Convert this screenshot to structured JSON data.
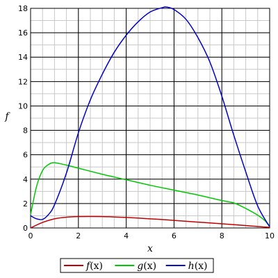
{
  "chart_data": {
    "type": "line",
    "title": "",
    "xlabel": "x",
    "ylabel": "f",
    "xlim": [
      0,
      10
    ],
    "ylim": [
      0,
      18
    ],
    "x_ticks": [
      0,
      2,
      4,
      6,
      8,
      10
    ],
    "y_ticks": [
      0,
      2,
      4,
      6,
      8,
      10,
      12,
      14,
      16,
      18
    ],
    "grid": true,
    "legend_position": "bottom",
    "series": [
      {
        "name": "f(x)",
        "color": "#c00000",
        "x": [
          0,
          0.5,
          1,
          1.5,
          2,
          2.5,
          3,
          3.5,
          4,
          4.5,
          5,
          5.5,
          6,
          6.5,
          7,
          7.5,
          8,
          8.5,
          9,
          9.5,
          10
        ],
        "values": [
          0,
          0.45,
          0.75,
          0.88,
          0.93,
          0.94,
          0.93,
          0.9,
          0.86,
          0.81,
          0.75,
          0.69,
          0.62,
          0.55,
          0.48,
          0.41,
          0.34,
          0.27,
          0.2,
          0.12,
          0.05
        ]
      },
      {
        "name": "g(x)",
        "color": "#00c800",
        "x": [
          0,
          0.25,
          0.5,
          0.75,
          1,
          1.5,
          2,
          3,
          4,
          5,
          6,
          7,
          8,
          8.5,
          9,
          9.5,
          9.8,
          10
        ],
        "values": [
          1.1,
          3.4,
          4.7,
          5.2,
          5.35,
          5.15,
          4.9,
          4.4,
          3.95,
          3.5,
          3.1,
          2.7,
          2.25,
          2.05,
          1.6,
          1.05,
          0.6,
          0.1
        ]
      },
      {
        "name": "h(x)",
        "color": "#0000c8",
        "x": [
          0,
          0.25,
          0.5,
          0.75,
          1,
          1.5,
          2,
          2.5,
          3,
          3.5,
          4,
          4.5,
          5,
          5.5,
          5.7,
          6,
          6.5,
          7,
          7.5,
          8,
          8.5,
          9,
          9.5,
          10
        ],
        "values": [
          1.0,
          0.75,
          0.7,
          1.1,
          1.9,
          4.5,
          7.8,
          10.5,
          12.6,
          14.4,
          15.8,
          16.9,
          17.7,
          18.05,
          18.1,
          17.9,
          17.1,
          15.6,
          13.6,
          10.8,
          7.6,
          4.6,
          1.8,
          0.1
        ]
      }
    ]
  },
  "legend": {
    "items": [
      {
        "fn": "f",
        "arg": "(x)"
      },
      {
        "fn": "g",
        "arg": "(x)"
      },
      {
        "fn": "h",
        "arg": "(x)"
      }
    ]
  }
}
